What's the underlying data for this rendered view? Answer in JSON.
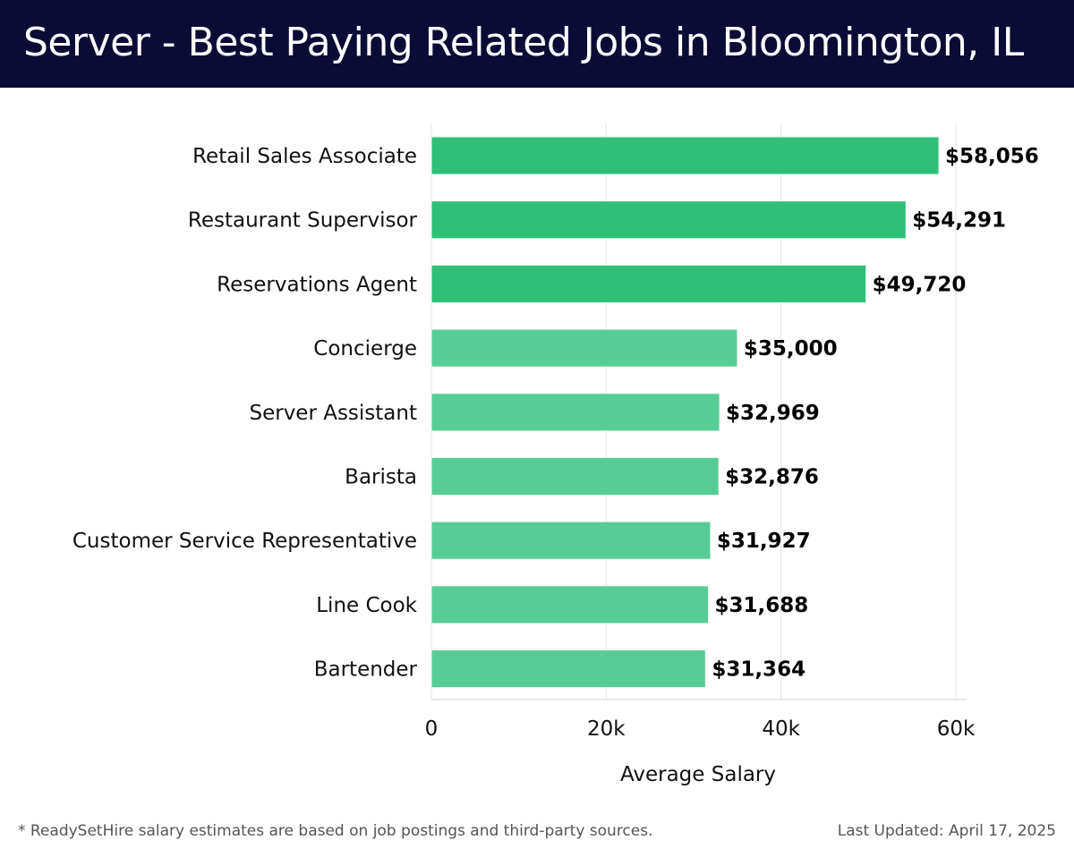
{
  "header": {
    "title": "Server - Best Paying Related Jobs in Bloomington, IL"
  },
  "chart_data": {
    "type": "bar",
    "orientation": "horizontal",
    "categories": [
      "Retail Sales Associate",
      "Restaurant Supervisor",
      "Reservations Agent",
      "Concierge",
      "Server Assistant",
      "Barista",
      "Customer Service Representative",
      "Line Cook",
      "Bartender"
    ],
    "values": [
      58056,
      54291,
      49720,
      35000,
      32969,
      32876,
      31927,
      31688,
      31364
    ],
    "value_labels": [
      "$58,056",
      "$54,291",
      "$49,720",
      "$35,000",
      "$32,969",
      "$32,876",
      "$31,927",
      "$31,688",
      "$31,364"
    ],
    "xlabel": "Average Salary",
    "xlim": [
      0,
      60000
    ],
    "xticks": [
      0,
      20000,
      40000,
      60000
    ],
    "xtick_labels": [
      "0",
      "20k",
      "40k",
      "60k"
    ],
    "grid": true,
    "colors": {
      "top": "#2fbf78",
      "rest": "#57cd95"
    }
  },
  "footer": {
    "note": "* ReadySetHire salary estimates are based on job postings and third-party sources.",
    "updated": "Last Updated: April 17, 2025"
  }
}
